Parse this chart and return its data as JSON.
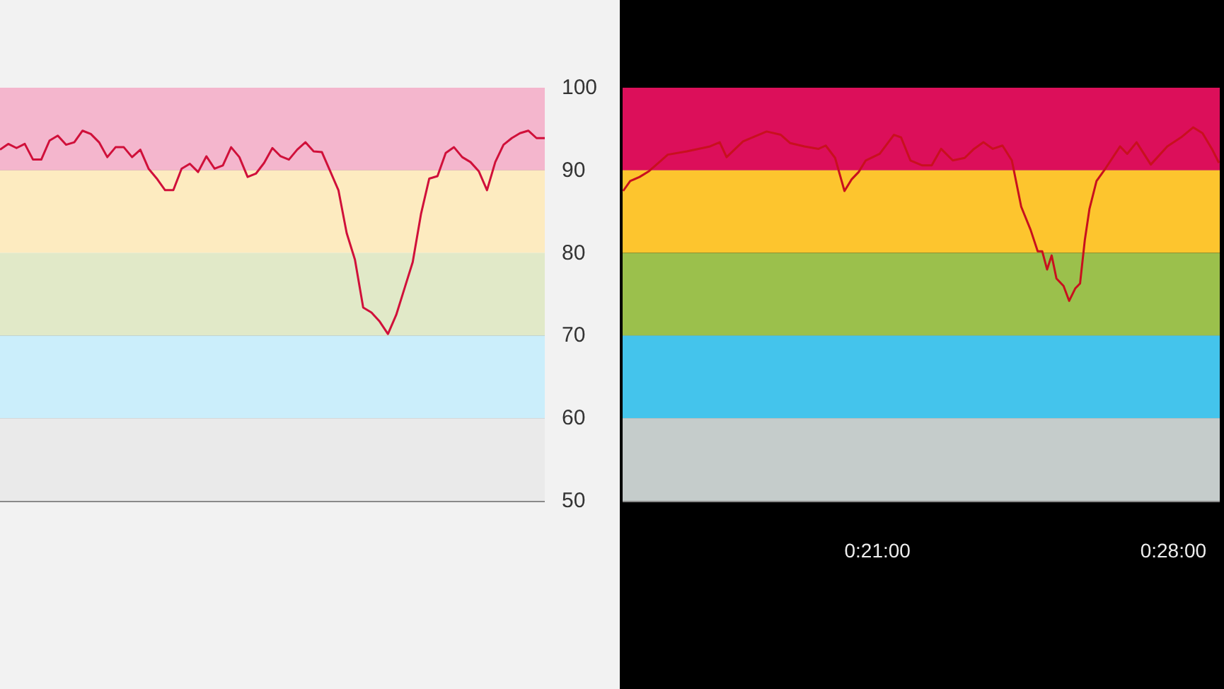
{
  "chart_data": [
    {
      "type": "line",
      "categories": [
        null,
        null,
        null,
        null,
        null,
        null,
        null,
        null,
        null,
        null,
        null,
        null,
        null,
        null,
        null,
        null,
        null,
        null,
        null,
        null,
        null,
        null,
        null,
        null,
        null,
        null,
        null,
        null,
        null,
        null,
        null,
        null,
        null,
        null,
        null,
        null,
        null,
        null,
        null,
        null,
        null,
        null,
        null,
        null,
        null,
        null,
        null,
        null,
        null,
        null,
        null,
        null,
        null,
        null,
        null,
        null,
        null,
        null,
        null,
        null,
        null,
        null,
        null,
        null,
        null,
        null,
        null
      ],
      "series": [
        {
          "color": "#d0103a",
          "values": [
            92.5,
            93.2,
            92.7,
            93.2,
            91.3,
            91.3,
            93.6,
            94.2,
            93.1,
            93.4,
            94.8,
            94.4,
            93.4,
            91.6,
            92.8,
            92.8,
            91.6,
            92.5,
            90.2,
            89.0,
            87.6,
            87.6,
            90.2,
            90.8,
            89.8,
            91.7,
            90.2,
            90.6,
            92.8,
            91.6,
            89.2,
            89.6,
            90.9,
            92.7,
            91.7,
            91.3,
            92.5,
            93.4,
            92.3,
            92.2,
            89.9,
            87.6,
            82.4,
            79.2,
            73.4,
            72.8,
            71.7,
            70.2,
            72.5,
            75.7,
            78.9,
            84.7,
            89.0,
            89.3,
            92.1,
            92.8,
            91.6,
            91.0,
            89.9,
            87.6,
            91.0,
            93.1,
            93.9,
            94.5,
            94.8,
            93.9,
            93.9
          ]
        }
      ],
      "ylim": [
        50,
        100
      ],
      "yticks": [
        50,
        60,
        70,
        80,
        90,
        100
      ],
      "grid": "y",
      "tick_labels": "y",
      "marker": "none",
      "bands": [
        {
          "axis": "y",
          "from": 90,
          "to": 100,
          "color": "#f4b6cd"
        },
        {
          "axis": "y",
          "from": 80,
          "to": 90,
          "color": "#fdebc0"
        },
        {
          "axis": "y",
          "from": 70,
          "to": 80,
          "color": "#e1e9c8"
        },
        {
          "axis": "y",
          "from": 60,
          "to": 70,
          "color": "#cbeefb"
        },
        {
          "axis": "y",
          "from": 50,
          "to": 60,
          "color": "#eaeaea"
        }
      ]
    },
    {
      "type": "line",
      "x": [
        0.2497,
        0.2525,
        0.2562,
        0.2599,
        0.2636,
        0.2673,
        0.2748,
        0.284,
        0.2878,
        0.2905,
        0.297,
        0.3008,
        0.3063,
        0.3119,
        0.3156,
        0.3212,
        0.3268,
        0.3296,
        0.3333,
        0.337,
        0.3398,
        0.3426,
        0.3454,
        0.3509,
        0.3565,
        0.3593,
        0.363,
        0.3677,
        0.3714,
        0.3751,
        0.3797,
        0.3844,
        0.3881,
        0.3918,
        0.3955,
        0.3993,
        0.403,
        0.4067,
        0.4104,
        0.4132,
        0.415,
        0.4169,
        0.4187,
        0.4206,
        0.4234,
        0.4256,
        0.428,
        0.4299,
        0.4318,
        0.4336,
        0.4364,
        0.4401,
        0.4457,
        0.4485,
        0.4522,
        0.4578,
        0.4643,
        0.4698,
        0.4745,
        0.4782,
        0.4819,
        0.4847
      ],
      "series": [
        {
          "color": "#c8101e",
          "values": [
            87.5,
            88.7,
            89.2,
            89.9,
            90.9,
            91.9,
            92.3,
            92.9,
            93.4,
            91.6,
            93.5,
            94.0,
            94.7,
            94.3,
            93.3,
            92.9,
            92.6,
            93.0,
            91.5,
            87.5,
            88.9,
            89.8,
            91.2,
            92.0,
            94.3,
            94.0,
            91.2,
            90.6,
            90.6,
            92.6,
            91.2,
            91.5,
            92.6,
            93.4,
            92.6,
            93.0,
            91.2,
            85.6,
            82.8,
            80.2,
            80.2,
            78.0,
            79.7,
            76.9,
            76.0,
            74.2,
            75.7,
            76.3,
            81.6,
            85.3,
            88.7,
            90.3,
            92.9,
            92.0,
            93.4,
            90.7,
            92.9,
            94.0,
            95.2,
            94.5,
            92.6,
            90.9
          ]
        }
      ],
      "xlim": [
        0.2495,
        0.485
      ],
      "xticks": [
        {
          "value": 0.35,
          "label": "0:21:00"
        },
        {
          "value": 0.4667,
          "label": "0:28:00"
        }
      ],
      "ylim": [
        50,
        100
      ],
      "yticks": [
        50,
        60,
        70,
        80,
        90,
        100
      ],
      "grid": "y",
      "tick_labels": "x",
      "marker": "none",
      "bands": [
        {
          "axis": "y",
          "from": 90,
          "to": 100,
          "color": "#dc0f5a"
        },
        {
          "axis": "y",
          "from": 80,
          "to": 90,
          "color": "#fdc52e"
        },
        {
          "axis": "y",
          "from": 70,
          "to": 80,
          "color": "#9bc04c"
        },
        {
          "axis": "y",
          "from": 60,
          "to": 70,
          "color": "#44c4ec"
        },
        {
          "axis": "y",
          "from": 50,
          "to": 60,
          "color": "#c5cccb"
        }
      ]
    }
  ]
}
